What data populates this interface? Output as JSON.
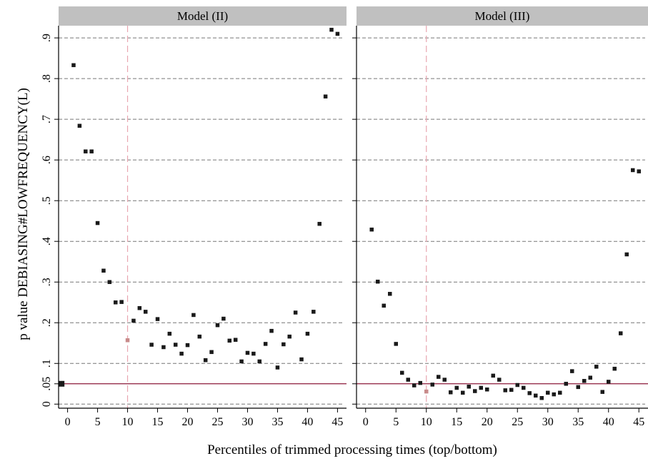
{
  "chart_data": {
    "type": "scatter",
    "ylabel": "p value DEBIASING#LOWFREQUENCY(L)",
    "xlabel": "Percentiles of trimmed processing times (top/bottom)",
    "xlim": [
      -1.5,
      46.5
    ],
    "ylim": [
      -0.01,
      0.93
    ],
    "x_ticks": [
      0,
      5,
      10,
      15,
      20,
      25,
      30,
      35,
      40,
      45
    ],
    "x_tick_labels": [
      "0",
      "5",
      "10",
      "15",
      "20",
      "25",
      "30",
      "35",
      "40",
      "45"
    ],
    "y_ticks": [
      0,
      0.05,
      0.1,
      0.2,
      0.3,
      0.4,
      0.5,
      0.6,
      0.7,
      0.8,
      0.9
    ],
    "y_tick_labels": [
      "0",
      ".05",
      ".1",
      ".2",
      ".3",
      ".4",
      ".5",
      ".6",
      ".7",
      ".8",
      ".9"
    ],
    "grid_y": [
      0,
      0.1,
      0.2,
      0.3,
      0.4,
      0.5,
      0.6,
      0.7,
      0.8,
      0.9
    ],
    "reference_line_y": 0.05,
    "reference_line_x": 10,
    "colors": {
      "points": "#1a1a1a",
      "highlight_point": "#c88a8a",
      "reference_line": "#8b1a3a",
      "vertical_line": "#e8a5b0",
      "grid": "#777777",
      "strip": "#c0c0c0",
      "frame": "#000000"
    },
    "panels": [
      {
        "title": "Model (II)",
        "highlight": {
          "x": 10,
          "y": 0.157
        },
        "baseline": {
          "x": -1,
          "y": 0.05
        },
        "x": [
          1,
          2,
          3,
          4,
          5,
          6,
          7,
          8,
          9,
          11,
          12,
          13,
          14,
          15,
          16,
          17,
          18,
          19,
          20,
          21,
          22,
          23,
          24,
          25,
          26,
          27,
          28,
          29,
          30,
          31,
          32,
          33,
          34,
          35,
          36,
          37,
          38,
          39,
          40,
          41,
          42,
          43,
          44,
          45
        ],
        "y": [
          0.833,
          0.684,
          0.621,
          0.621,
          0.445,
          0.328,
          0.3,
          0.25,
          0.251,
          0.205,
          0.236,
          0.227,
          0.146,
          0.209,
          0.14,
          0.173,
          0.146,
          0.124,
          0.145,
          0.219,
          0.166,
          0.108,
          0.128,
          0.194,
          0.21,
          0.156,
          0.158,
          0.105,
          0.126,
          0.124,
          0.105,
          0.148,
          0.18,
          0.09,
          0.147,
          0.166,
          0.225,
          0.11,
          0.173,
          0.227,
          0.443,
          0.756,
          0.92,
          0.91
        ]
      },
      {
        "title": "Model (III)",
        "highlight": {
          "x": 10,
          "y": 0.031
        },
        "x": [
          1,
          2,
          3,
          4,
          5,
          6,
          7,
          8,
          9,
          11,
          12,
          13,
          14,
          15,
          16,
          17,
          18,
          19,
          20,
          21,
          22,
          23,
          24,
          25,
          26,
          27,
          28,
          29,
          30,
          31,
          32,
          33,
          34,
          35,
          36,
          37,
          38,
          39,
          40,
          41,
          42,
          43,
          44,
          45
        ],
        "y": [
          0.429,
          0.301,
          0.242,
          0.271,
          0.148,
          0.077,
          0.06,
          0.046,
          0.052,
          0.048,
          0.067,
          0.06,
          0.029,
          0.04,
          0.028,
          0.043,
          0.032,
          0.04,
          0.036,
          0.07,
          0.06,
          0.034,
          0.035,
          0.047,
          0.04,
          0.027,
          0.021,
          0.015,
          0.028,
          0.024,
          0.028,
          0.05,
          0.081,
          0.042,
          0.057,
          0.065,
          0.092,
          0.03,
          0.055,
          0.087,
          0.174,
          0.368,
          0.575,
          0.572
        ]
      }
    ]
  }
}
